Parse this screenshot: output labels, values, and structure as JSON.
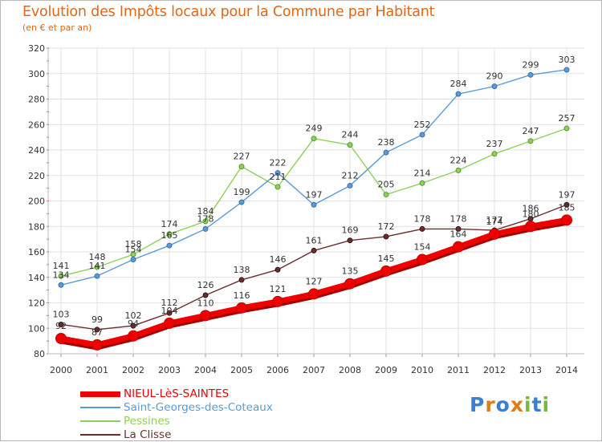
{
  "title": "Evolution des Impôts locaux pour la Commune par Habitant",
  "subtitle": "(en € et par an)",
  "logo": [
    "P",
    "r",
    "o",
    "x",
    "i",
    "t",
    "i"
  ],
  "logo_colors": [
    "#3a7fd0",
    "#e07b1a",
    "#3a7fd0",
    "#e07b1a",
    "#7ab83a",
    "#3a7fd0",
    "#7ab83a"
  ],
  "chart_data": {
    "type": "line",
    "x": [
      2000,
      2001,
      2002,
      2003,
      2004,
      2005,
      2006,
      2007,
      2008,
      2009,
      2010,
      2011,
      2012,
      2013,
      2014
    ],
    "ylim": [
      80,
      320
    ],
    "yticks": [
      80,
      100,
      120,
      140,
      160,
      180,
      200,
      220,
      240,
      260,
      280,
      300,
      320
    ],
    "grid": true,
    "legend_position": "bottom-left",
    "series": [
      {
        "name": "NIEUL-LèS-SAINTES",
        "color": "#ee0000",
        "values": [
          92,
          87,
          94,
          104,
          110,
          116,
          121,
          127,
          135,
          145,
          154,
          164,
          174,
          180,
          185
        ]
      },
      {
        "name": "Saint-Georges-des-Coteaux",
        "color": "#5b9bd5",
        "values": [
          134,
          141,
          154,
          165,
          178,
          199,
          222,
          197,
          212,
          238,
          252,
          284,
          290,
          299,
          303
        ]
      },
      {
        "name": "Pessines",
        "color": "#8ed05a",
        "values": [
          141,
          148,
          158,
          174,
          184,
          227,
          211,
          249,
          244,
          205,
          214,
          224,
          237,
          247,
          257
        ]
      },
      {
        "name": "La Clisse",
        "color": "#6b2e2e",
        "values": [
          103,
          99,
          102,
          112,
          126,
          138,
          146,
          161,
          169,
          172,
          178,
          178,
          177,
          186,
          197
        ]
      }
    ]
  }
}
